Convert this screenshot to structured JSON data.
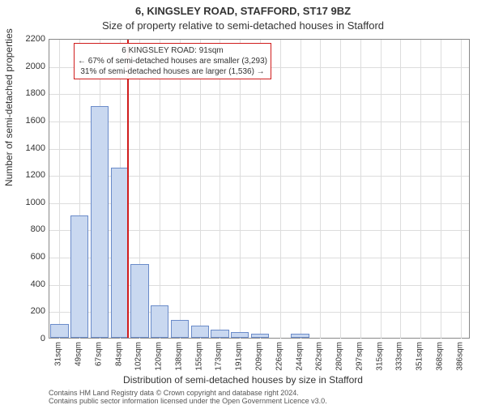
{
  "title_line1": "6, KINGSLEY ROAD, STAFFORD, ST17 9BZ",
  "title_line2": "Size of property relative to semi-detached houses in Stafford",
  "ylabel": "Number of semi-detached properties",
  "xlabel": "Distribution of semi-detached houses by size in Stafford",
  "footer_line1": "Contains HM Land Registry data © Crown copyright and database right 2024.",
  "footer_line2": "Contains public sector information licensed under the Open Government Licence v3.0.",
  "chart": {
    "type": "histogram",
    "background_color": "#ffffff",
    "grid_color": "#dddddd",
    "border_color": "#888888",
    "bar_fill": "#c9d8f0",
    "bar_stroke": "#6a8bc9",
    "label_fontsize": 12,
    "tick_fontsize": 11,
    "ylim": [
      0,
      2200
    ],
    "yticks": [
      0,
      200,
      400,
      600,
      800,
      1000,
      1200,
      1400,
      1600,
      1800,
      2000,
      2200
    ],
    "xlabels": [
      "31sqm",
      "49sqm",
      "67sqm",
      "84sqm",
      "102sqm",
      "120sqm",
      "138sqm",
      "155sqm",
      "173sqm",
      "191sqm",
      "209sqm",
      "226sqm",
      "244sqm",
      "262sqm",
      "280sqm",
      "297sqm",
      "315sqm",
      "333sqm",
      "351sqm",
      "368sqm",
      "386sqm"
    ],
    "values": [
      100,
      900,
      1700,
      1250,
      540,
      240,
      130,
      90,
      60,
      40,
      30,
      0,
      30,
      0,
      0,
      0,
      0,
      0,
      0,
      0,
      0
    ],
    "marker": {
      "value_sqm": 91,
      "color": "#d01c1c",
      "bin_index_after": 3
    },
    "annotation": {
      "lines": [
        "6 KINGSLEY ROAD: 91sqm",
        "← 67% of semi-detached houses are smaller (3,293)",
        "31% of semi-detached houses are larger (1,536) →"
      ],
      "border_color": "#d01c1c"
    }
  }
}
